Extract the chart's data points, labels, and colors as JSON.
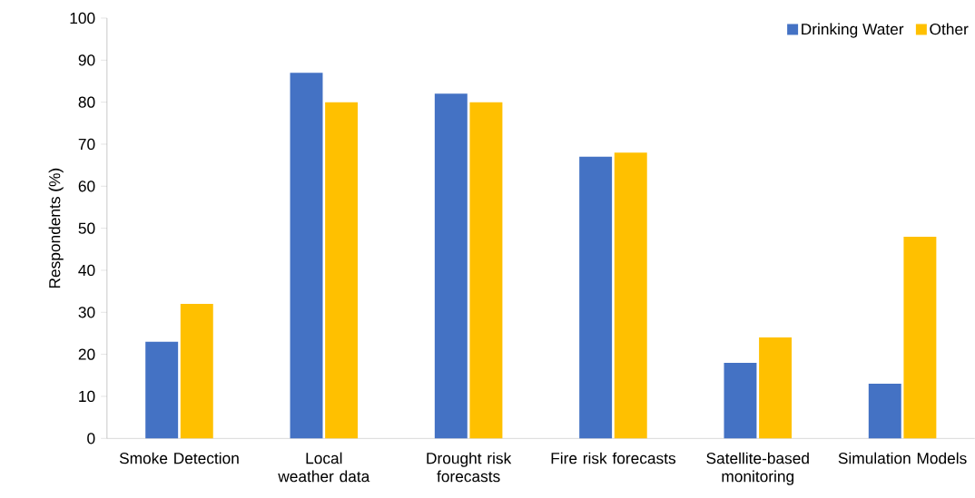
{
  "chart_data": {
    "type": "bar",
    "ylabel": "Respondents (%)",
    "categories": [
      "Smoke Detection",
      "Local weather data",
      "Drought risk forecasts",
      "Fire risk forecasts",
      "Satellite-based monitoring",
      "Simulation Models"
    ],
    "series": [
      {
        "name": "Drinking Water",
        "color": "#4472c4",
        "values": [
          23,
          87,
          82,
          67,
          18,
          13
        ]
      },
      {
        "name": "Other",
        "color": "#ffc000",
        "values": [
          32,
          80,
          80,
          68,
          24,
          48
        ]
      }
    ],
    "ylim": [
      0,
      100
    ],
    "yticks": [
      0,
      10,
      20,
      30,
      40,
      50,
      60,
      70,
      80,
      90,
      100
    ],
    "grid": false,
    "legend": "top right"
  }
}
